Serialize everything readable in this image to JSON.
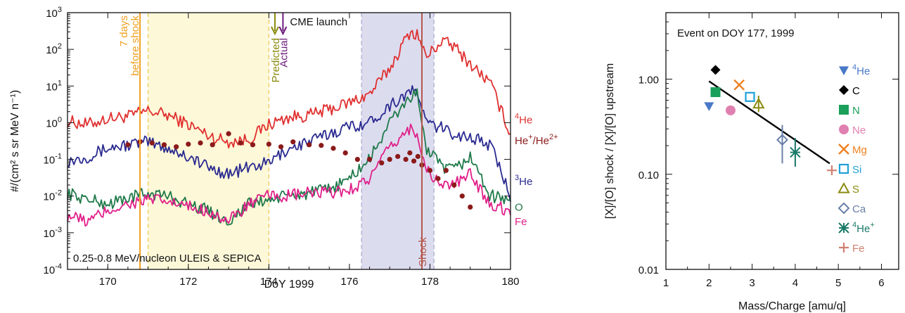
{
  "chart_data": [
    {
      "type": "line",
      "title": "",
      "xlabel": "DoY 1999",
      "ylabel": "#/(cm² s sr MeV n⁻¹)",
      "xlim": [
        169,
        180
      ],
      "ylim": [
        0.0001,
        1000
      ],
      "yscale": "log",
      "x_ticks": [
        "170",
        "172",
        "174",
        "176",
        "178",
        "180"
      ],
      "y_ticks": [
        {
          "base": "10",
          "exp": "3"
        },
        {
          "base": "10",
          "exp": "2"
        },
        {
          "base": "10",
          "exp": "1"
        },
        {
          "base": "10",
          "exp": "0"
        },
        {
          "base": "10",
          "exp": "-1"
        },
        {
          "base": "10",
          "exp": "-2"
        },
        {
          "base": "10",
          "exp": "-3"
        },
        {
          "base": "10",
          "exp": "-4"
        }
      ],
      "grid": false,
      "annotation_bottom": "0.25-0.8 MeV/nucleon ULEIS & SEPICA",
      "marker_7days": {
        "x": 170.8,
        "line1": "7 days",
        "line2": "before shock",
        "color": "#f0a020"
      },
      "yellow_band": {
        "from": 171.0,
        "to": 174.0,
        "color": "#fdf8d8"
      },
      "purple_band": {
        "from": 176.3,
        "to": 178.1,
        "color": "#dcdcef"
      },
      "shock": {
        "x": 177.8,
        "label": "Shock",
        "color": "#b5574a"
      },
      "cme": {
        "label": "CME launch",
        "predicted": {
          "x": 174.15,
          "label": "Predicted",
          "color": "#8b8b10"
        },
        "actual": {
          "x": 174.35,
          "label": "Actual",
          "color": "#6a1b7a"
        }
      },
      "series": [
        {
          "label": "⁴He",
          "color": "#e03030",
          "points": [
            [
              169,
              1.1
            ],
            [
              169.5,
              0.9
            ],
            [
              170,
              1.3
            ],
            [
              170.5,
              1.5
            ],
            [
              171,
              2.1
            ],
            [
              171.5,
              1.6
            ],
            [
              172,
              0.9
            ],
            [
              172.5,
              0.45
            ],
            [
              173,
              0.3
            ],
            [
              173.5,
              0.35
            ],
            [
              174,
              0.9
            ],
            [
              174.5,
              1.4
            ],
            [
              175,
              1.6
            ],
            [
              175.5,
              2.3
            ],
            [
              176,
              3.5
            ],
            [
              176.5,
              6.0
            ],
            [
              177,
              30
            ],
            [
              177.3,
              120
            ],
            [
              177.5,
              300
            ],
            [
              177.7,
              250
            ],
            [
              177.9,
              60
            ],
            [
              178.3,
              170
            ],
            [
              178.6,
              120
            ],
            [
              179,
              40
            ],
            [
              179.5,
              12
            ],
            [
              180,
              0.5
            ]
          ]
        },
        {
          "label": "³He",
          "color": "#2a2a90",
          "points": [
            [
              169,
              0.09
            ],
            [
              169.5,
              0.12
            ],
            [
              170,
              0.2
            ],
            [
              170.5,
              0.25
            ],
            [
              171,
              0.3
            ],
            [
              171.5,
              0.2
            ],
            [
              172,
              0.12
            ],
            [
              172.5,
              0.06
            ],
            [
              173,
              0.04
            ],
            [
              173.5,
              0.06
            ],
            [
              174,
              0.08
            ],
            [
              174.5,
              0.2
            ],
            [
              175,
              0.3
            ],
            [
              175.5,
              0.5
            ],
            [
              176,
              0.8
            ],
            [
              176.5,
              1.0
            ],
            [
              177,
              3.0
            ],
            [
              177.5,
              7.0
            ],
            [
              177.7,
              6.5
            ],
            [
              177.9,
              1.0
            ],
            [
              178.3,
              0.7
            ],
            [
              178.6,
              0.5
            ],
            [
              179,
              0.4
            ],
            [
              179.5,
              0.25
            ],
            [
              180,
              0.01
            ]
          ]
        },
        {
          "label": "O",
          "color": "#1f7a4a",
          "points": [
            [
              169,
              0.012
            ],
            [
              169.5,
              0.008
            ],
            [
              170,
              0.006
            ],
            [
              170.5,
              0.009
            ],
            [
              171,
              0.012
            ],
            [
              171.5,
              0.01
            ],
            [
              172,
              0.006
            ],
            [
              172.5,
              0.004
            ],
            [
              173,
              0.002
            ],
            [
              173.5,
              0.006
            ],
            [
              174,
              0.008
            ],
            [
              174.5,
              0.01
            ],
            [
              175,
              0.012
            ],
            [
              175.5,
              0.015
            ],
            [
              176,
              0.03
            ],
            [
              176.5,
              0.1
            ],
            [
              177,
              1.0
            ],
            [
              177.5,
              5.0
            ],
            [
              177.7,
              6.0
            ],
            [
              177.9,
              0.2
            ],
            [
              178.3,
              0.06
            ],
            [
              178.6,
              0.05
            ],
            [
              179,
              0.12
            ],
            [
              179.5,
              0.01
            ],
            [
              180,
              0.008
            ]
          ]
        },
        {
          "label": "Fe",
          "color": "#e0208a",
          "points": [
            [
              169,
              0.003
            ],
            [
              169.5,
              0.002
            ],
            [
              170,
              0.004
            ],
            [
              170.5,
              0.006
            ],
            [
              171,
              0.008
            ],
            [
              171.5,
              0.007
            ],
            [
              172,
              0.005
            ],
            [
              172.5,
              0.004
            ],
            [
              173,
              0.002
            ],
            [
              173.5,
              0.006
            ],
            [
              174,
              0.01
            ],
            [
              174.5,
              0.01
            ],
            [
              175,
              0.012
            ],
            [
              175.5,
              0.012
            ],
            [
              176,
              0.015
            ],
            [
              176.5,
              0.03
            ],
            [
              177,
              0.2
            ],
            [
              177.5,
              0.7
            ],
            [
              177.7,
              0.5
            ],
            [
              177.9,
              0.05
            ],
            [
              178.3,
              0.02
            ],
            [
              178.6,
              0.02
            ],
            [
              179,
              0.04
            ],
            [
              179.5,
              0.006
            ],
            [
              180,
              0.004
            ]
          ]
        },
        {
          "label": "He⁺/He²⁺",
          "color": "#8b1a1a",
          "style": "dots",
          "points": [
            [
              170.5,
              0.25
            ],
            [
              170.8,
              0.3
            ],
            [
              171.1,
              0.28
            ],
            [
              171.4,
              0.25
            ],
            [
              171.7,
              0.22
            ],
            [
              172,
              0.26
            ],
            [
              172.3,
              0.28
            ],
            [
              172.6,
              0.25
            ],
            [
              173,
              0.5
            ],
            [
              173.3,
              0.28
            ],
            [
              173.6,
              0.25
            ],
            [
              174,
              0.26
            ],
            [
              174.3,
              0.22
            ],
            [
              174.6,
              0.3
            ],
            [
              175,
              0.25
            ],
            [
              175.3,
              0.24
            ],
            [
              175.6,
              0.2
            ],
            [
              175.9,
              0.15
            ],
            [
              176.2,
              0.1
            ],
            [
              176.5,
              0.1
            ],
            [
              176.8,
              0.08
            ],
            [
              177,
              0.1
            ],
            [
              177.2,
              0.12
            ],
            [
              177.4,
              0.1
            ],
            [
              177.5,
              0.15
            ],
            [
              177.6,
              0.09
            ],
            [
              177.7,
              0.12
            ],
            [
              177.8,
              0.07
            ],
            [
              178,
              0.05
            ],
            [
              178.2,
              0.03
            ],
            [
              178.4,
              0.05
            ],
            [
              178.6,
              0.02
            ],
            [
              178.8,
              0.01
            ],
            [
              179,
              0.005
            ]
          ]
        }
      ],
      "right_labels": [
        {
          "text_base": "He",
          "sup_pre": "4",
          "sup_post": "",
          "color": "#e03030",
          "y": 1.2
        },
        {
          "text_base": "He",
          "sup_pre": "",
          "sup_post": "+",
          "text_mid": "/He",
          "sup_post2": "2+",
          "color": "#8b1a1a",
          "y": 0.32
        },
        {
          "text_base": "He",
          "sup_pre": "3",
          "sup_post": "",
          "color": "#2a2a90",
          "y": 0.025
        },
        {
          "text_base": "O",
          "sup_pre": "",
          "sup_post": "",
          "color": "#1f7a4a",
          "y": 0.005
        },
        {
          "text_base": "Fe",
          "sup_pre": "",
          "sup_post": "",
          "color": "#e0208a",
          "y": 0.002
        }
      ]
    },
    {
      "type": "scatter",
      "title": "Event on DOY 177, 1999",
      "xlabel": "Mass/Charge [amu/q]",
      "ylabel": "[X]/[O] shock / [X]/[O] upstream",
      "xlim": [
        1,
        6.4
      ],
      "ylim": [
        0.01,
        5
      ],
      "yscale": "log",
      "x_ticks": [
        "1",
        "2",
        "3",
        "4",
        "5",
        "6"
      ],
      "y_ticks": [
        "1.00",
        "0.10",
        "0.01"
      ],
      "fit_line": {
        "x0": 2.0,
        "y0": 0.95,
        "x1": 4.8,
        "y1": 0.13,
        "color": "#000000"
      },
      "points": [
        {
          "label": "⁴He",
          "x": 2.0,
          "y": 0.52,
          "marker": "tri-down",
          "color": "#4a78c8",
          "err": null
        },
        {
          "label": "C",
          "x": 2.15,
          "y": 1.25,
          "marker": "diamond-filled",
          "color": "#000000",
          "err": null
        },
        {
          "label": "N",
          "x": 2.15,
          "y": 0.73,
          "marker": "square-filled",
          "color": "#1aa05a",
          "err": null
        },
        {
          "label": "Ne",
          "x": 2.5,
          "y": 0.47,
          "marker": "circle-filled",
          "color": "#e080b0",
          "err": null
        },
        {
          "label": "Mg",
          "x": 2.7,
          "y": 0.87,
          "marker": "x",
          "color": "#f08020",
          "err": null
        },
        {
          "label": "Si",
          "x": 2.95,
          "y": 0.65,
          "marker": "square-open",
          "color": "#20a0d8",
          "err": null
        },
        {
          "label": "S",
          "x": 3.15,
          "y": 0.55,
          "marker": "tri-open",
          "color": "#8b8b10",
          "err": [
            0.45,
            0.67
          ]
        },
        {
          "label": "Ca",
          "x": 3.7,
          "y": 0.23,
          "marker": "diamond-open",
          "color": "#6a80a8",
          "err": [
            0.13,
            0.33
          ]
        },
        {
          "label": "⁴He⁺",
          "x": 4.0,
          "y": 0.17,
          "marker": "asterisk",
          "color": "#1a7a6a",
          "err": [
            0.12,
            0.24
          ]
        },
        {
          "label": "Fe",
          "x": 4.85,
          "y": 0.11,
          "marker": "plus",
          "color": "#d08070",
          "err": null
        }
      ],
      "legend": [
        {
          "base": "He",
          "sup_pre": "4",
          "sup_post": "",
          "marker": "tri-down",
          "color": "#4a78c8"
        },
        {
          "base": "C",
          "sup_pre": "",
          "sup_post": "",
          "marker": "diamond-filled",
          "color": "#000000"
        },
        {
          "base": "N",
          "sup_pre": "",
          "sup_post": "",
          "marker": "square-filled",
          "color": "#1aa05a"
        },
        {
          "base": "Ne",
          "sup_pre": "",
          "sup_post": "",
          "marker": "circle-filled",
          "color": "#e080b0"
        },
        {
          "base": "Mg",
          "sup_pre": "",
          "sup_post": "",
          "marker": "x",
          "color": "#f08020"
        },
        {
          "base": "Si",
          "sup_pre": "",
          "sup_post": "",
          "marker": "square-open",
          "color": "#20a0d8"
        },
        {
          "base": "S",
          "sup_pre": "",
          "sup_post": "",
          "marker": "tri-open",
          "color": "#8b8b10"
        },
        {
          "base": "Ca",
          "sup_pre": "",
          "sup_post": "",
          "marker": "diamond-open",
          "color": "#6a80a8"
        },
        {
          "base": "He",
          "sup_pre": "4",
          "sup_post": "+",
          "marker": "asterisk",
          "color": "#1a7a6a"
        },
        {
          "base": "Fe",
          "sup_pre": "",
          "sup_post": "",
          "marker": "plus",
          "color": "#d08070"
        }
      ],
      "legend_position": "right"
    }
  ]
}
